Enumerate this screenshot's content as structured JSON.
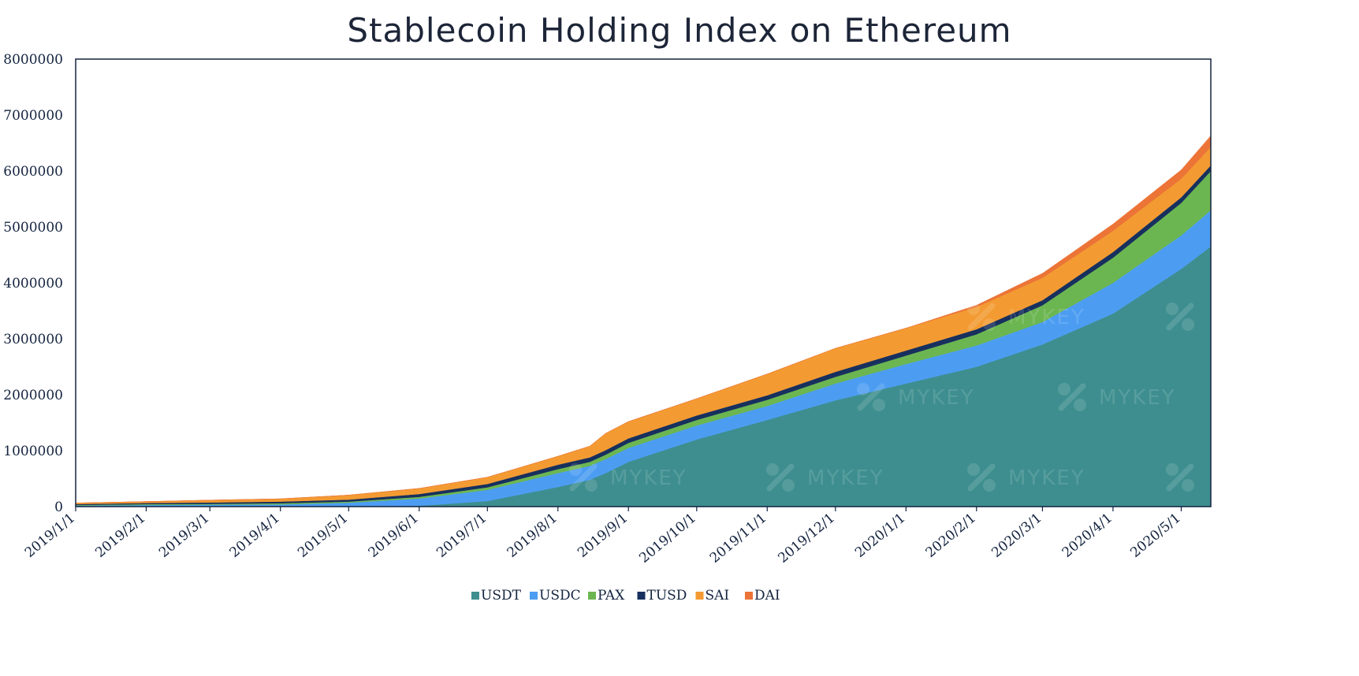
{
  "chart_data": {
    "type": "area",
    "stacked": true,
    "title": "Stablecoin Holding Index on Ethereum",
    "xlabel": "",
    "ylabel": "",
    "ylim": [
      0,
      8000000
    ],
    "yticks": [
      0,
      1000000,
      2000000,
      3000000,
      4000000,
      5000000,
      6000000,
      7000000,
      8000000
    ],
    "ytick_labels": [
      "0",
      "1000000",
      "2000000",
      "3000000",
      "4000000",
      "5000000",
      "6000000",
      "7000000",
      "8000000"
    ],
    "xlim": [
      "2019/1/1",
      "2020/5/14"
    ],
    "xtick_labels": [
      "2019/1/1",
      "2019/2/1",
      "2019/3/1",
      "2019/4/1",
      "2019/5/1",
      "2019/6/1",
      "2019/7/1",
      "2019/8/1",
      "2019/9/1",
      "2019/10/1",
      "2019/11/1",
      "2019/12/1",
      "2020/1/1",
      "2020/2/1",
      "2020/3/1",
      "2020/4/1",
      "2020/5/1"
    ],
    "legend_position": "bottom",
    "grid": false,
    "x": [
      "2019/1/1",
      "2019/2/1",
      "2019/3/1",
      "2019/4/1",
      "2019/5/1",
      "2019/6/1",
      "2019/7/1",
      "2019/8/1",
      "2019/8/15",
      "2019/8/22",
      "2019/9/1",
      "2019/10/1",
      "2019/11/1",
      "2019/12/1",
      "2020/1/1",
      "2020/2/1",
      "2020/3/1",
      "2020/4/1",
      "2020/5/1",
      "2020/5/14"
    ],
    "series": [
      {
        "name": "USDT",
        "color": "#3e8e8f",
        "values": [
          0,
          0,
          0,
          0,
          0,
          15000,
          100000,
          350000,
          480000,
          600000,
          800000,
          1200000,
          1550000,
          1900000,
          2200000,
          2500000,
          2900000,
          3450000,
          4250000,
          4650000
        ]
      },
      {
        "name": "USDC",
        "color": "#4c9df2",
        "values": [
          20000,
          30000,
          35000,
          40000,
          70000,
          130000,
          200000,
          250000,
          250000,
          250000,
          250000,
          250000,
          250000,
          300000,
          350000,
          380000,
          400000,
          550000,
          600000,
          650000
        ]
      },
      {
        "name": "PAX",
        "color": "#6cb652",
        "values": [
          10000,
          15000,
          15000,
          20000,
          20000,
          30000,
          45000,
          70000,
          70000,
          80000,
          90000,
          100000,
          110000,
          120000,
          150000,
          200000,
          300000,
          450000,
          580000,
          700000
        ]
      },
      {
        "name": "TUSD",
        "color": "#17305e",
        "values": [
          15000,
          20000,
          25000,
          30000,
          35000,
          50000,
          60000,
          80000,
          80000,
          80000,
          80000,
          80000,
          80000,
          90000,
          90000,
          90000,
          90000,
          100000,
          100000,
          100000
        ]
      },
      {
        "name": "SAI",
        "color": "#f39b32",
        "values": [
          20000,
          25000,
          40000,
          50000,
          80000,
          100000,
          120000,
          150000,
          200000,
          300000,
          300000,
          300000,
          380000,
          420000,
          400000,
          400000,
          400000,
          380000,
          330000,
          330000
        ]
      },
      {
        "name": "DAI",
        "color": "#ec7437",
        "values": [
          0,
          0,
          0,
          0,
          0,
          0,
          0,
          0,
          0,
          0,
          0,
          0,
          0,
          0,
          0,
          30000,
          80000,
          120000,
          160000,
          200000
        ]
      }
    ]
  }
}
